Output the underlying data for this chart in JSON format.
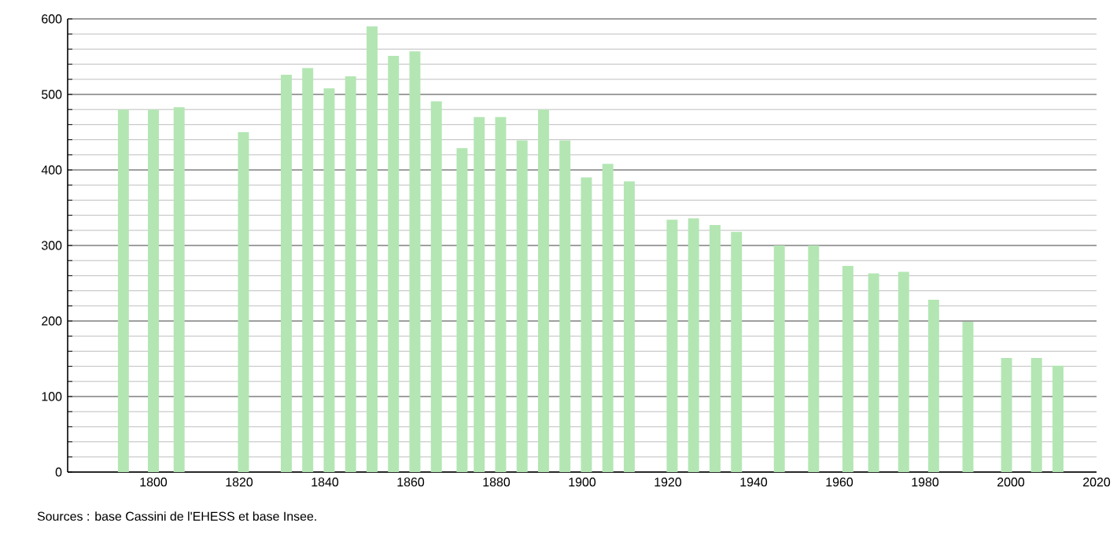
{
  "chart_data": {
    "type": "bar",
    "x": [
      1793,
      1800,
      1806,
      1821,
      1831,
      1836,
      1841,
      1846,
      1851,
      1856,
      1861,
      1866,
      1872,
      1876,
      1881,
      1886,
      1891,
      1896,
      1901,
      1906,
      1911,
      1921,
      1926,
      1931,
      1936,
      1946,
      1954,
      1962,
      1968,
      1975,
      1982,
      1990,
      1999,
      2006,
      2011
    ],
    "values": [
      480,
      480,
      483,
      450,
      526,
      535,
      508,
      524,
      590,
      551,
      557,
      491,
      429,
      470,
      470,
      439,
      480,
      439,
      390,
      408,
      385,
      334,
      336,
      327,
      318,
      300,
      300,
      273,
      263,
      265,
      228,
      199,
      151,
      151,
      141
    ],
    "color": "#b3e6b3",
    "xlim": [
      1780,
      2020
    ],
    "xticks": [
      1800,
      1820,
      1840,
      1860,
      1880,
      1900,
      1920,
      1940,
      1960,
      1980,
      2000,
      2020
    ],
    "ylim": [
      0,
      600
    ],
    "yticks": [
      0,
      100,
      200,
      300,
      400,
      500,
      600
    ],
    "grid": "y",
    "annotations": [
      "Sources : base Cassini de l'EHESS et base Insee."
    ]
  }
}
